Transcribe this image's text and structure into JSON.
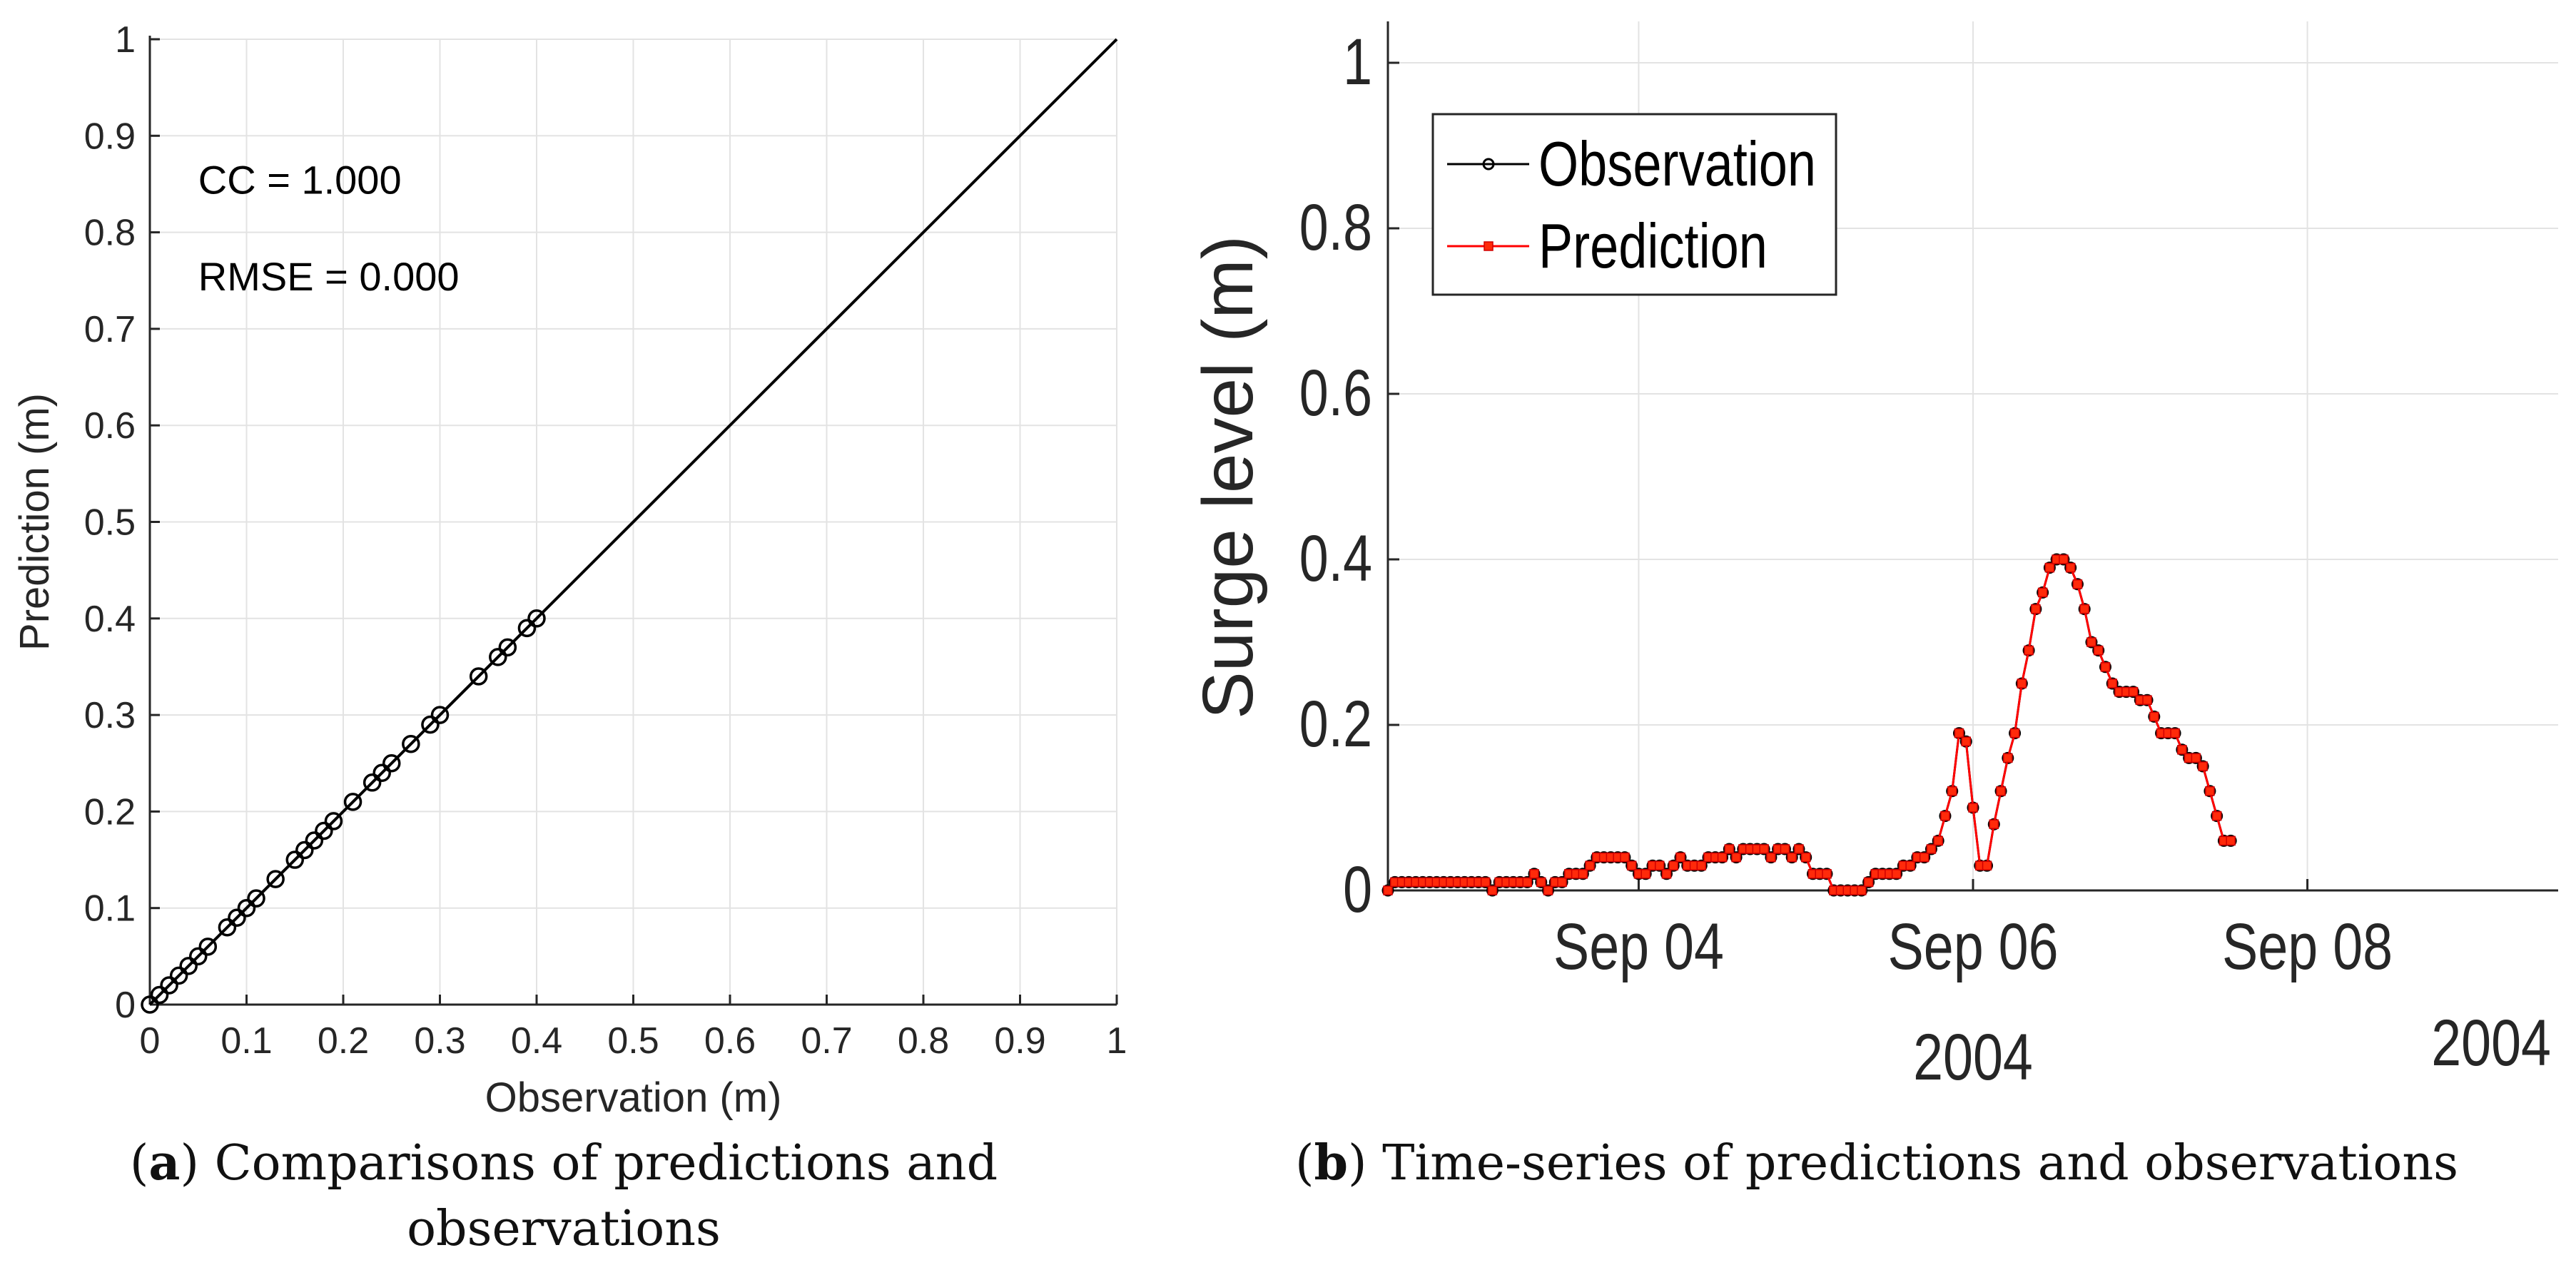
{
  "chart_data": [
    {
      "type": "scatter",
      "panel": "a",
      "xlabel": "Observation (m)",
      "ylabel": "Prediction (m)",
      "xlim": [
        0,
        1
      ],
      "ylim": [
        0,
        1
      ],
      "xticks": [
        "0",
        "0.1",
        "0.2",
        "0.3",
        "0.4",
        "0.5",
        "0.6",
        "0.7",
        "0.8",
        "0.9",
        "1"
      ],
      "yticks": [
        "0",
        "0.1",
        "0.2",
        "0.3",
        "0.4",
        "0.5",
        "0.6",
        "0.7",
        "0.8",
        "0.9",
        "1"
      ],
      "grid": true,
      "annotations": [
        "CC = 1.000",
        "RMSE = 0.000"
      ],
      "reference_line": {
        "x": [
          0,
          1
        ],
        "y": [
          0,
          1
        ],
        "color": "#000000"
      },
      "series": [
        {
          "marker": "open-circle",
          "color": "#000000",
          "x": [
            0,
            0.01,
            0.02,
            0.03,
            0.04,
            0.05,
            0.06,
            0.08,
            0.09,
            0.1,
            0.11,
            0.13,
            0.15,
            0.16,
            0.17,
            0.18,
            0.19,
            0.21,
            0.23,
            0.24,
            0.25,
            0.27,
            0.29,
            0.3,
            0.34,
            0.36,
            0.37,
            0.39,
            0.4
          ],
          "y": [
            0,
            0.01,
            0.02,
            0.03,
            0.04,
            0.05,
            0.06,
            0.08,
            0.09,
            0.1,
            0.11,
            0.13,
            0.15,
            0.16,
            0.17,
            0.18,
            0.19,
            0.21,
            0.23,
            0.24,
            0.25,
            0.27,
            0.29,
            0.3,
            0.34,
            0.36,
            0.37,
            0.39,
            0.4
          ]
        }
      ]
    },
    {
      "type": "line",
      "panel": "b",
      "ylabel": "Surge level (m)",
      "ylim": [
        0,
        1.05
      ],
      "yticks": [
        "0",
        "0.2",
        "0.4",
        "0.6",
        "0.8",
        "1"
      ],
      "xlim": [
        "2004-09-02 12:00",
        "2004-09-09 12:00"
      ],
      "xticks": [
        {
          "date": "2004-09-04",
          "label": "Sep 04",
          "year": ""
        },
        {
          "date": "2004-09-06",
          "label": "Sep 06",
          "year": "2004"
        },
        {
          "date": "2004-09-08",
          "label": "Sep 08",
          "year": ""
        }
      ],
      "corner_year": "2004",
      "grid": true,
      "legend": {
        "placement": "top-left"
      },
      "start": "2004-09-02 12:00",
      "interval_hours": 1,
      "series": [
        {
          "name": "Observation",
          "color": "#000000",
          "marker": "circle",
          "values": [
            0,
            0.01,
            0.01,
            0.01,
            0.01,
            0.01,
            0.01,
            0.01,
            0.01,
            0.01,
            0.01,
            0.01,
            0.01,
            0.01,
            0.01,
            0,
            0.01,
            0.01,
            0.01,
            0.01,
            0.01,
            0.02,
            0.01,
            0,
            0.01,
            0.01,
            0.02,
            0.02,
            0.02,
            0.03,
            0.04,
            0.04,
            0.04,
            0.04,
            0.04,
            0.03,
            0.02,
            0.02,
            0.03,
            0.03,
            0.02,
            0.03,
            0.04,
            0.03,
            0.03,
            0.03,
            0.04,
            0.04,
            0.04,
            0.05,
            0.04,
            0.05,
            0.05,
            0.05,
            0.05,
            0.04,
            0.05,
            0.05,
            0.04,
            0.05,
            0.04,
            0.02,
            0.02,
            0.02,
            0,
            0,
            0,
            0,
            0,
            0.01,
            0.02,
            0.02,
            0.02,
            0.02,
            0.03,
            0.03,
            0.04,
            0.04,
            0.05,
            0.06,
            0.09,
            0.12,
            0.19,
            0.18,
            0.1,
            0.03,
            0.03,
            0.08,
            0.12,
            0.16,
            0.19,
            0.25,
            0.29,
            0.34,
            0.36,
            0.39,
            0.4,
            0.4,
            0.39,
            0.37,
            0.34,
            0.3,
            0.29,
            0.27,
            0.25,
            0.24,
            0.24,
            0.24,
            0.23,
            0.23,
            0.21,
            0.19,
            0.19,
            0.19,
            0.17,
            0.16,
            0.16,
            0.15,
            0.12,
            0.09,
            0.06,
            0.06
          ]
        },
        {
          "name": "Prediction",
          "color": "#ff0000",
          "marker": "square",
          "values": [
            0,
            0.01,
            0.01,
            0.01,
            0.01,
            0.01,
            0.01,
            0.01,
            0.01,
            0.01,
            0.01,
            0.01,
            0.01,
            0.01,
            0.01,
            0,
            0.01,
            0.01,
            0.01,
            0.01,
            0.01,
            0.02,
            0.01,
            0,
            0.01,
            0.01,
            0.02,
            0.02,
            0.02,
            0.03,
            0.04,
            0.04,
            0.04,
            0.04,
            0.04,
            0.03,
            0.02,
            0.02,
            0.03,
            0.03,
            0.02,
            0.03,
            0.04,
            0.03,
            0.03,
            0.03,
            0.04,
            0.04,
            0.04,
            0.05,
            0.04,
            0.05,
            0.05,
            0.05,
            0.05,
            0.04,
            0.05,
            0.05,
            0.04,
            0.05,
            0.04,
            0.02,
            0.02,
            0.02,
            0,
            0,
            0,
            0,
            0,
            0.01,
            0.02,
            0.02,
            0.02,
            0.02,
            0.03,
            0.03,
            0.04,
            0.04,
            0.05,
            0.06,
            0.09,
            0.12,
            0.19,
            0.18,
            0.1,
            0.03,
            0.03,
            0.08,
            0.12,
            0.16,
            0.19,
            0.25,
            0.29,
            0.34,
            0.36,
            0.39,
            0.4,
            0.4,
            0.39,
            0.37,
            0.34,
            0.3,
            0.29,
            0.27,
            0.25,
            0.24,
            0.24,
            0.24,
            0.23,
            0.23,
            0.21,
            0.19,
            0.19,
            0.19,
            0.17,
            0.16,
            0.16,
            0.15,
            0.12,
            0.09,
            0.06,
            0.06
          ]
        }
      ]
    }
  ],
  "captions": {
    "a": {
      "label": "a",
      "text": " Comparisons of predictions and observations"
    },
    "b": {
      "label": "b",
      "text": " Time-series of predictions and observations"
    }
  }
}
